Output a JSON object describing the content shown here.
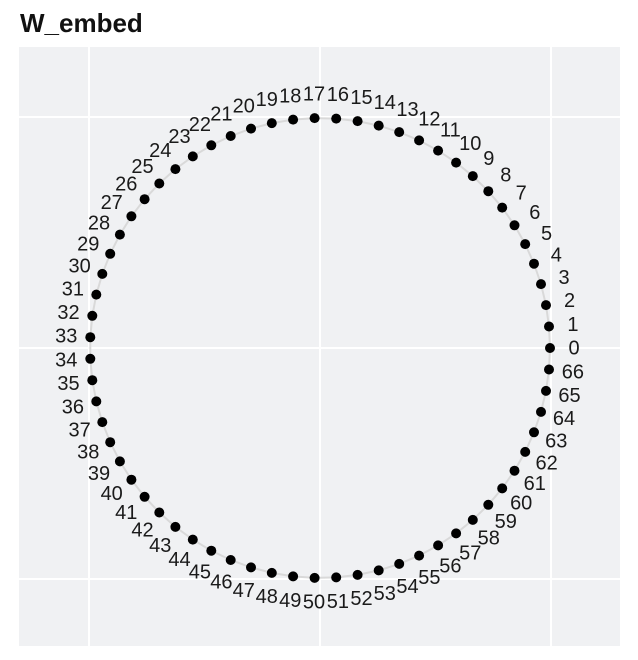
{
  "header": {
    "title": "W_embed"
  },
  "chart_data": {
    "type": "scatter",
    "title": "W_embed",
    "n_points": 67,
    "labels": [
      "0",
      "1",
      "2",
      "3",
      "4",
      "5",
      "6",
      "7",
      "8",
      "9",
      "10",
      "11",
      "12",
      "13",
      "14",
      "15",
      "16",
      "17",
      "18",
      "19",
      "20",
      "21",
      "22",
      "23",
      "24",
      "25",
      "26",
      "27",
      "28",
      "29",
      "30",
      "31",
      "32",
      "33",
      "34",
      "35",
      "36",
      "37",
      "38",
      "39",
      "40",
      "41",
      "42",
      "43",
      "44",
      "45",
      "46",
      "47",
      "48",
      "49",
      "50",
      "51",
      "52",
      "53",
      "54",
      "55",
      "56",
      "57",
      "58",
      "59",
      "60",
      "61",
      "62",
      "63",
      "64",
      "65",
      "66"
    ],
    "arrangement": "points evenly spaced counterclockwise on unit circle; point 0 at angle 0 (right), point 17 at top, point 34 at left, point 50 at bottom",
    "point_radius_data": 1.0,
    "label_radius_data": 1.1,
    "xlim": [
      -1.31,
      1.29
    ],
    "ylim": [
      -1.29,
      1.3
    ],
    "grid_ticks": [
      -1,
      0,
      1
    ],
    "grid_on": true,
    "style": {
      "panel_bg": "#f0f1f3",
      "grid_color": "#ffffff",
      "ring_color": "#d9d9d9",
      "point_color": "#000000",
      "label_color": "#1a1a1a"
    }
  }
}
